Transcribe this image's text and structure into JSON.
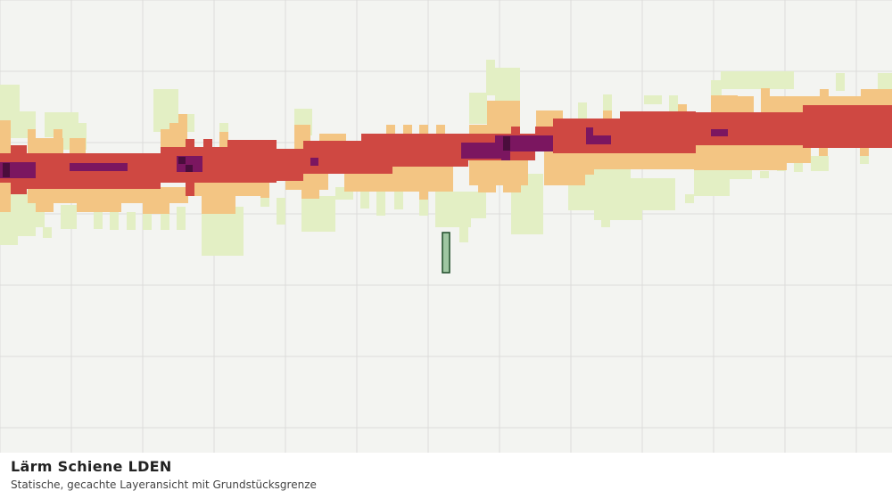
{
  "layer": {
    "title": "Lärm Schiene LDEN",
    "subtitle": "Statische, gecachte Layeransicht mit Grundstücksgrenze"
  }
}
